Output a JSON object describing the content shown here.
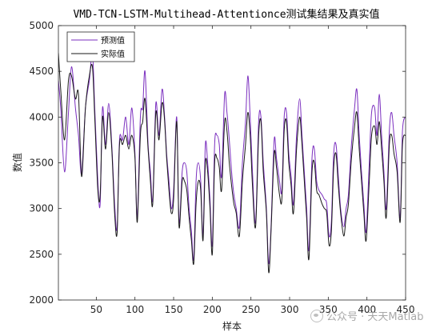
{
  "chart_data": {
    "type": "line",
    "title": "VMD-TCN-LSTM-Multihead-Attentionce测试集结果及真实值",
    "xlabel": "样本",
    "ylabel": "数值",
    "xlim": [
      1,
      450
    ],
    "ylim": [
      2000,
      5000
    ],
    "xticks": [
      50,
      100,
      150,
      200,
      250,
      300,
      350,
      400,
      450
    ],
    "yticks": [
      2000,
      2500,
      3000,
      3500,
      4000,
      4500,
      5000
    ],
    "grid": false,
    "legend_position": "top-left",
    "series": [
      {
        "name": "预测值",
        "color": "#7b2fbf",
        "points": [
          [
            1,
            4400
          ],
          [
            4,
            4100
          ],
          [
            9,
            3400
          ],
          [
            14,
            4050
          ],
          [
            18,
            4550
          ],
          [
            23,
            4100
          ],
          [
            27,
            3800
          ],
          [
            31,
            3380
          ],
          [
            36,
            4100
          ],
          [
            41,
            4400
          ],
          [
            45,
            4700
          ],
          [
            48,
            4100
          ],
          [
            52,
            3300
          ],
          [
            55,
            3050
          ],
          [
            58,
            4100
          ],
          [
            62,
            3700
          ],
          [
            66,
            4150
          ],
          [
            70,
            3700
          ],
          [
            74,
            3000
          ],
          [
            77,
            2800
          ],
          [
            80,
            3750
          ],
          [
            84,
            3750
          ],
          [
            88,
            4000
          ],
          [
            92,
            3700
          ],
          [
            96,
            4100
          ],
          [
            100,
            3600
          ],
          [
            103,
            2900
          ],
          [
            107,
            4000
          ],
          [
            110,
            4100
          ],
          [
            113,
            4500
          ],
          [
            117,
            3700
          ],
          [
            120,
            3400
          ],
          [
            123,
            3100
          ],
          [
            127,
            4150
          ],
          [
            131,
            3800
          ],
          [
            135,
            4300
          ],
          [
            138,
            4050
          ],
          [
            141,
            3600
          ],
          [
            144,
            3300
          ],
          [
            147,
            3000
          ],
          [
            150,
            3200
          ],
          [
            154,
            4000
          ],
          [
            157,
            2850
          ],
          [
            161,
            3400
          ],
          [
            164,
            3500
          ],
          [
            167,
            3400
          ],
          [
            170,
            3000
          ],
          [
            173,
            2750
          ],
          [
            176,
            2450
          ],
          [
            179,
            3300
          ],
          [
            182,
            3500
          ],
          [
            185,
            3300
          ],
          [
            188,
            2700
          ],
          [
            191,
            3700
          ],
          [
            194,
            3500
          ],
          [
            197,
            3100
          ],
          [
            200,
            2600
          ],
          [
            203,
            3700
          ],
          [
            206,
            3800
          ],
          [
            209,
            3700
          ],
          [
            212,
            3350
          ],
          [
            216,
            4250
          ],
          [
            219,
            4050
          ],
          [
            222,
            3750
          ],
          [
            225,
            3400
          ],
          [
            228,
            3150
          ],
          [
            231,
            3000
          ],
          [
            235,
            2800
          ],
          [
            239,
            3500
          ],
          [
            243,
            3950
          ],
          [
            246,
            4450
          ],
          [
            249,
            4000
          ],
          [
            252,
            3400
          ],
          [
            256,
            2850
          ],
          [
            260,
            3950
          ],
          [
            263,
            4000
          ],
          [
            266,
            3500
          ],
          [
            270,
            3000
          ],
          [
            273,
            2400
          ],
          [
            276,
            2800
          ],
          [
            280,
            3750
          ],
          [
            283,
            3550
          ],
          [
            287,
            3300
          ],
          [
            290,
            3200
          ],
          [
            293,
            4000
          ],
          [
            296,
            4050
          ],
          [
            299,
            3600
          ],
          [
            302,
            3350
          ],
          [
            305,
            3050
          ],
          [
            309,
            3800
          ],
          [
            313,
            4200
          ],
          [
            316,
            3800
          ],
          [
            319,
            3400
          ],
          [
            322,
            3000
          ],
          [
            325,
            2550
          ],
          [
            329,
            3550
          ],
          [
            332,
            3650
          ],
          [
            335,
            3300
          ],
          [
            338,
            3200
          ],
          [
            342,
            3150
          ],
          [
            345,
            3100
          ],
          [
            348,
            3050
          ],
          [
            351,
            2700
          ],
          [
            354,
            2850
          ],
          [
            357,
            3600
          ],
          [
            360,
            3700
          ],
          [
            363,
            3350
          ],
          [
            366,
            3000
          ],
          [
            370,
            2800
          ],
          [
            373,
            3000
          ],
          [
            376,
            3150
          ],
          [
            380,
            3700
          ],
          [
            384,
            4100
          ],
          [
            387,
            4300
          ],
          [
            390,
            3800
          ],
          [
            393,
            3400
          ],
          [
            396,
            3050
          ],
          [
            399,
            2750
          ],
          [
            403,
            3500
          ],
          [
            406,
            4050
          ],
          [
            410,
            4100
          ],
          [
            413,
            3800
          ],
          [
            416,
            4250
          ],
          [
            419,
            3800
          ],
          [
            422,
            3400
          ],
          [
            425,
            3000
          ],
          [
            429,
            3850
          ],
          [
            432,
            4050
          ],
          [
            435,
            3800
          ],
          [
            439,
            3500
          ],
          [
            443,
            2900
          ],
          [
            446,
            3850
          ],
          [
            450,
            4000
          ]
        ]
      },
      {
        "name": "实际值",
        "color": "#1a1a1a",
        "points": [
          [
            1,
            4700
          ],
          [
            4,
            4300
          ],
          [
            9,
            3750
          ],
          [
            14,
            4400
          ],
          [
            18,
            4450
          ],
          [
            23,
            4200
          ],
          [
            27,
            4250
          ],
          [
            31,
            3350
          ],
          [
            36,
            4100
          ],
          [
            41,
            4450
          ],
          [
            45,
            4550
          ],
          [
            48,
            4000
          ],
          [
            52,
            3200
          ],
          [
            55,
            3150
          ],
          [
            58,
            4000
          ],
          [
            62,
            3650
          ],
          [
            66,
            4050
          ],
          [
            70,
            3650
          ],
          [
            74,
            2900
          ],
          [
            77,
            2750
          ],
          [
            80,
            3700
          ],
          [
            84,
            3700
          ],
          [
            88,
            3800
          ],
          [
            92,
            3650
          ],
          [
            96,
            3800
          ],
          [
            100,
            3550
          ],
          [
            103,
            2850
          ],
          [
            107,
            3800
          ],
          [
            110,
            3950
          ],
          [
            113,
            4200
          ],
          [
            117,
            3650
          ],
          [
            120,
            3300
          ],
          [
            123,
            3050
          ],
          [
            127,
            4050
          ],
          [
            131,
            3750
          ],
          [
            135,
            4150
          ],
          [
            138,
            4000
          ],
          [
            141,
            3550
          ],
          [
            144,
            3200
          ],
          [
            147,
            2950
          ],
          [
            150,
            3100
          ],
          [
            154,
            3950
          ],
          [
            157,
            2800
          ],
          [
            161,
            3300
          ],
          [
            164,
            3300
          ],
          [
            167,
            3200
          ],
          [
            170,
            2900
          ],
          [
            173,
            2650
          ],
          [
            176,
            2400
          ],
          [
            179,
            3050
          ],
          [
            182,
            3300
          ],
          [
            185,
            3200
          ],
          [
            188,
            2650
          ],
          [
            191,
            3500
          ],
          [
            194,
            3400
          ],
          [
            197,
            3000
          ],
          [
            200,
            2500
          ],
          [
            203,
            3500
          ],
          [
            206,
            3550
          ],
          [
            209,
            3450
          ],
          [
            212,
            3200
          ],
          [
            216,
            3950
          ],
          [
            219,
            3850
          ],
          [
            222,
            3500
          ],
          [
            225,
            3250
          ],
          [
            228,
            3050
          ],
          [
            231,
            2950
          ],
          [
            235,
            2700
          ],
          [
            239,
            3300
          ],
          [
            243,
            3700
          ],
          [
            246,
            4050
          ],
          [
            249,
            3800
          ],
          [
            252,
            3250
          ],
          [
            256,
            2800
          ],
          [
            260,
            3800
          ],
          [
            263,
            3950
          ],
          [
            266,
            3400
          ],
          [
            270,
            2950
          ],
          [
            273,
            2300
          ],
          [
            276,
            2750
          ],
          [
            280,
            3600
          ],
          [
            283,
            3450
          ],
          [
            287,
            3150
          ],
          [
            290,
            3100
          ],
          [
            293,
            3850
          ],
          [
            296,
            3950
          ],
          [
            299,
            3500
          ],
          [
            302,
            3250
          ],
          [
            305,
            2950
          ],
          [
            309,
            3650
          ],
          [
            313,
            4000
          ],
          [
            316,
            3700
          ],
          [
            319,
            3300
          ],
          [
            322,
            2900
          ],
          [
            325,
            2450
          ],
          [
            329,
            3400
          ],
          [
            332,
            3500
          ],
          [
            335,
            3200
          ],
          [
            338,
            3150
          ],
          [
            342,
            3050
          ],
          [
            345,
            3000
          ],
          [
            348,
            2950
          ],
          [
            351,
            2600
          ],
          [
            354,
            2750
          ],
          [
            357,
            3450
          ],
          [
            360,
            3600
          ],
          [
            363,
            3250
          ],
          [
            366,
            2950
          ],
          [
            370,
            2700
          ],
          [
            373,
            2900
          ],
          [
            376,
            3050
          ],
          [
            380,
            3550
          ],
          [
            384,
            3900
          ],
          [
            387,
            4050
          ],
          [
            390,
            3650
          ],
          [
            393,
            3300
          ],
          [
            396,
            2950
          ],
          [
            399,
            2650
          ],
          [
            403,
            3300
          ],
          [
            406,
            3800
          ],
          [
            410,
            3900
          ],
          [
            413,
            3700
          ],
          [
            416,
            3950
          ],
          [
            419,
            3650
          ],
          [
            422,
            3300
          ],
          [
            425,
            2900
          ],
          [
            429,
            3700
          ],
          [
            432,
            3800
          ],
          [
            435,
            3600
          ],
          [
            439,
            3400
          ],
          [
            443,
            2850
          ],
          [
            446,
            3700
          ],
          [
            450,
            3800
          ]
        ]
      }
    ]
  },
  "watermark": {
    "text": "公众号 · 天天Matlab",
    "icon": "wechat-icon"
  }
}
